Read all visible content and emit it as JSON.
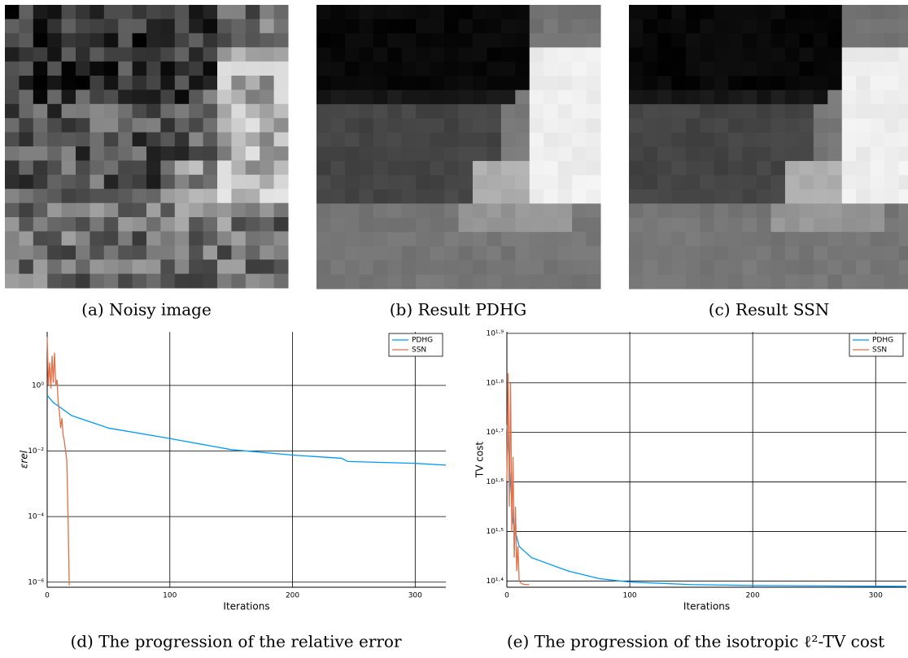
{
  "images": [
    {
      "caption": "(a) Noisy image"
    },
    {
      "caption": "(b) Result PDHG"
    },
    {
      "caption": "(c) Result SSN"
    }
  ],
  "chart_data": [
    {
      "type": "line",
      "caption": "(d) The progression of the relative error",
      "x_label": "Iterations",
      "y_label": "εrel",
      "log_y": true,
      "grid": true,
      "legend": "top-right",
      "xlim": [
        0,
        325
      ],
      "ylim": [
        7e-07,
        43
      ],
      "xticks": [
        0,
        100,
        200,
        300
      ],
      "yticks": [
        {
          "value": 1e-06,
          "label": "10⁻⁶"
        },
        {
          "value": 0.0001,
          "label": "10⁻⁴"
        },
        {
          "value": 0.01,
          "label": "10⁻²"
        },
        {
          "value": 1,
          "label": "10⁰"
        }
      ],
      "series": [
        {
          "name": "PDHG",
          "color": "#009AFA",
          "x": [
            0,
            5,
            20,
            50,
            100,
            150,
            200,
            240,
            245,
            300,
            325
          ],
          "values": [
            0.5,
            0.3,
            0.12,
            0.05,
            0.024,
            0.011,
            0.0075,
            0.006,
            0.0048,
            0.0042,
            0.0037
          ]
        },
        {
          "name": "SSN",
          "color": "#E26F46",
          "x": [
            0,
            1,
            2,
            3,
            4,
            5,
            6,
            7,
            8,
            9,
            10,
            11,
            12,
            13,
            14,
            15,
            16,
            17,
            18
          ],
          "values": [
            30,
            1.0,
            5,
            0.8,
            8,
            1.2,
            10,
            1.0,
            1.5,
            0.3,
            0.15,
            0.05,
            0.1,
            0.03,
            0.02,
            0.01,
            0.005,
            0.0001,
            8e-07
          ]
        }
      ]
    },
    {
      "type": "line",
      "caption": "(e) The progression of the isotropic ℓ²-TV cost",
      "x_label": "Iterations",
      "y_label": "TV cost",
      "log_y": true,
      "grid": true,
      "legend": "top-right",
      "xlim": [
        0,
        325
      ],
      "ylim": [
        24.4,
        80
      ],
      "xticks": [
        0,
        100,
        200,
        300
      ],
      "yticks": [
        {
          "value": 25.12,
          "label": "10¹·⁴"
        },
        {
          "value": 31.62,
          "label": "10¹·⁵"
        },
        {
          "value": 39.81,
          "label": "10¹·⁶"
        },
        {
          "value": 50.12,
          "label": "10¹·⁷"
        },
        {
          "value": 63.1,
          "label": "10¹·⁸"
        },
        {
          "value": 79.43,
          "label": "10¹·⁹"
        }
      ],
      "series": [
        {
          "name": "PDHG",
          "color": "#009AFA",
          "x": [
            0,
            5,
            10,
            20,
            50,
            75,
            100,
            150,
            200,
            325
          ],
          "values": [
            52,
            33,
            29.5,
            28,
            26.3,
            25.4,
            25.0,
            24.7,
            24.6,
            24.5
          ]
        },
        {
          "name": "SSN",
          "color": "#E26F46",
          "x": [
            0,
            1,
            2,
            3,
            4,
            5,
            6,
            7,
            8,
            9,
            10,
            12,
            15,
            18
          ],
          "values": [
            40,
            66,
            35.5,
            63,
            31.6,
            44.7,
            28,
            35.5,
            26.3,
            29.5,
            25.1,
            24.8,
            24.7,
            24.7
          ]
        }
      ]
    }
  ]
}
